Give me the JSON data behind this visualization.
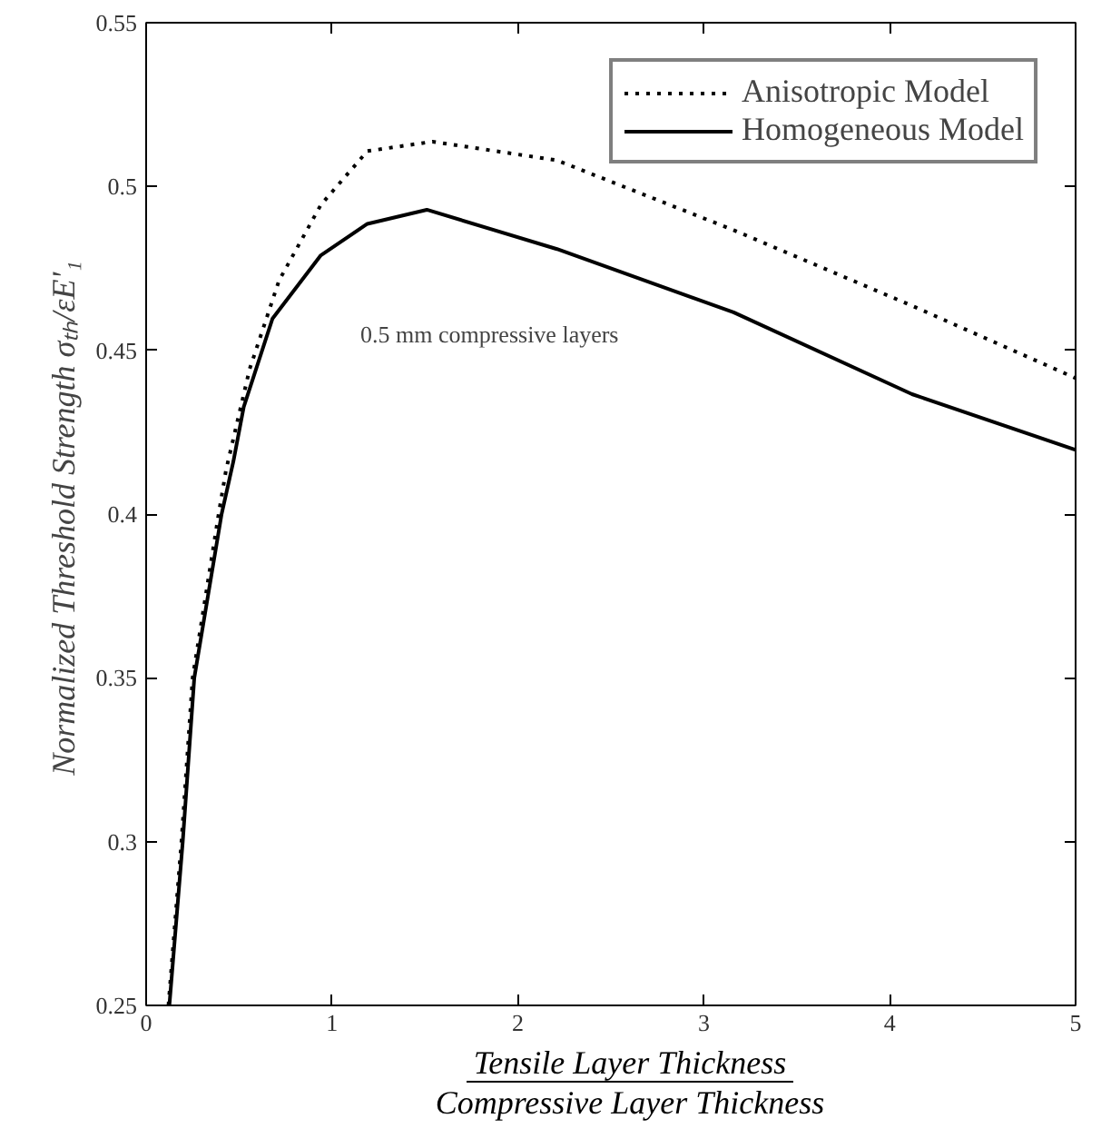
{
  "chart_data": {
    "type": "line",
    "xlabel": "Tensile Layer Thickness\nCompressive Layer Thickness",
    "ylabel": "Normalized Threshold Strength  σₜₕ/εE'₁",
    "annotations": [
      "0.5 mm compressive layers"
    ],
    "xlim": [
      0,
      5
    ],
    "ylim": [
      0.25,
      0.55
    ],
    "xticks": [
      0,
      1,
      2,
      3,
      4,
      5
    ],
    "yticks": [
      0.25,
      0.3,
      0.35,
      0.4,
      0.45,
      0.5,
      0.55
    ],
    "grid": false,
    "legend": "top right",
    "marker": "none",
    "series": [
      {
        "name": "Anisotropic Model",
        "color": "#000000",
        "line_style": "dotted",
        "x": [
          0.12,
          0.19,
          0.25,
          0.39,
          0.43,
          0.557,
          0.715,
          0.94,
          1.19,
          1.54,
          2.21,
          3.16,
          4.12,
          5.0
        ],
        "values": [
          0.25,
          0.3,
          0.35,
          0.4,
          0.4135,
          0.4443,
          0.4713,
          0.4944,
          0.5108,
          0.5137,
          0.508,
          0.4867,
          0.4636,
          0.4415
        ]
      },
      {
        "name": "Homogeneous Model",
        "color": "#000000",
        "line_style": "solid",
        "x": [
          0.125,
          0.197,
          0.259,
          0.406,
          0.469,
          0.525,
          0.68,
          0.94,
          1.19,
          1.51,
          2.21,
          3.16,
          4.12,
          5.0
        ],
        "values": [
          0.25,
          0.3,
          0.35,
          0.4,
          0.416,
          0.4327,
          0.4597,
          0.479,
          0.4886,
          0.4929,
          0.4809,
          0.4616,
          0.4366,
          0.4196
        ]
      }
    ]
  }
}
